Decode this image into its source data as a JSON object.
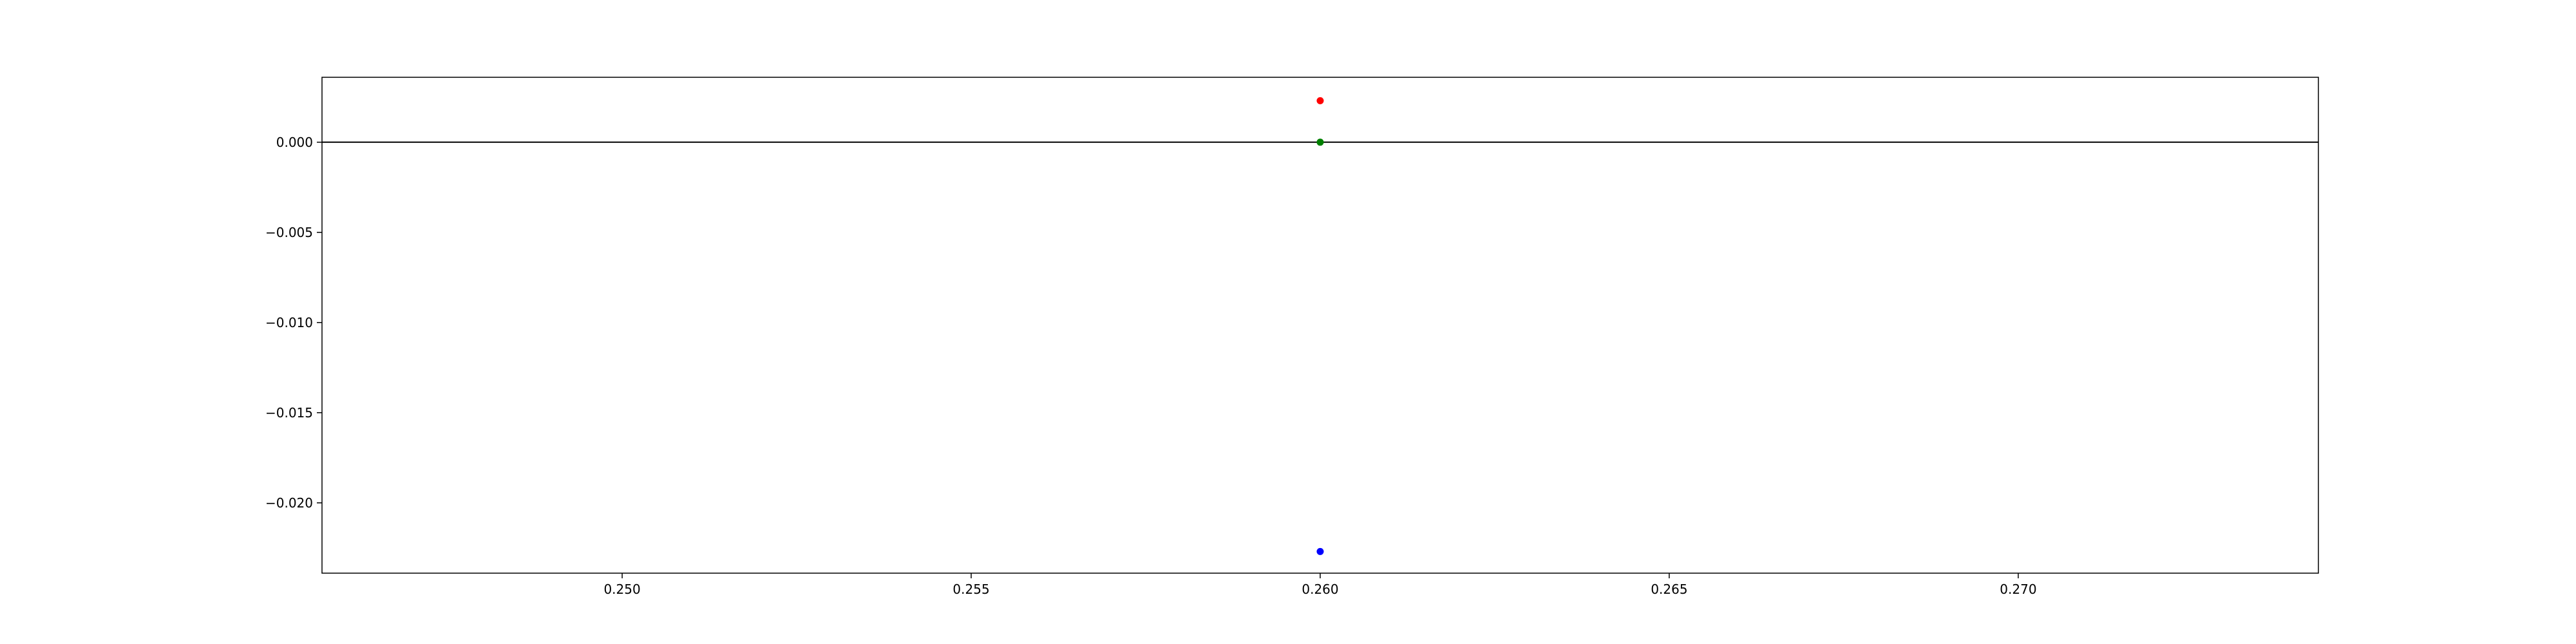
{
  "chart_data": {
    "type": "scatter",
    "title": "",
    "xlabel": "",
    "ylabel": "",
    "xlim": [
      0.2457,
      0.2743
    ],
    "ylim": [
      -0.0239,
      0.0036
    ],
    "grid": false,
    "legend": "none",
    "x_ticks": [
      {
        "value": 0.25,
        "label": "0.250"
      },
      {
        "value": 0.255,
        "label": "0.255"
      },
      {
        "value": 0.26,
        "label": "0.260"
      },
      {
        "value": 0.265,
        "label": "0.265"
      },
      {
        "value": 0.27,
        "label": "0.270"
      }
    ],
    "y_ticks": [
      {
        "value": 0.0,
        "label": "0.000"
      },
      {
        "value": -0.005,
        "label": "−0.005"
      },
      {
        "value": -0.01,
        "label": "−0.010"
      },
      {
        "value": -0.015,
        "label": "−0.015"
      },
      {
        "value": -0.02,
        "label": "−0.020"
      }
    ],
    "reference_lines": [
      {
        "orientation": "horizontal",
        "y": 0.0,
        "color": "#000000"
      }
    ],
    "points": [
      {
        "x": 0.26,
        "y": 0.0023,
        "color": "#ff0000"
      },
      {
        "x": 0.26,
        "y": 0.0,
        "color": "#008000"
      },
      {
        "x": 0.26,
        "y": -0.0227,
        "color": "#0000ff"
      }
    ]
  }
}
